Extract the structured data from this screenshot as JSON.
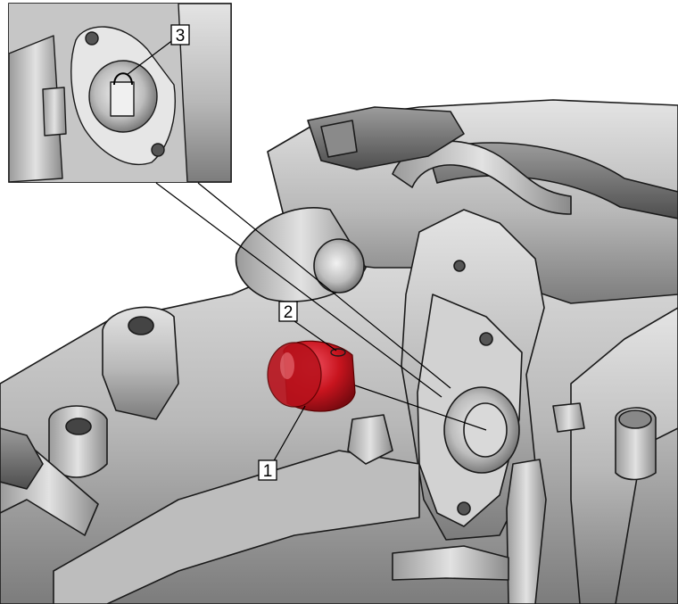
{
  "callouts": [
    {
      "id": "callout-1",
      "label": "1"
    },
    {
      "id": "callout-2",
      "label": "2"
    },
    {
      "id": "callout-3",
      "label": "3"
    }
  ],
  "colors": {
    "metal_light": "#d8d8d8",
    "metal_mid": "#a9a9a9",
    "metal_dark": "#6e6e6e",
    "outline": "#1a1a1a",
    "highlight_part": "#c8141e",
    "background": "#ffffff"
  }
}
